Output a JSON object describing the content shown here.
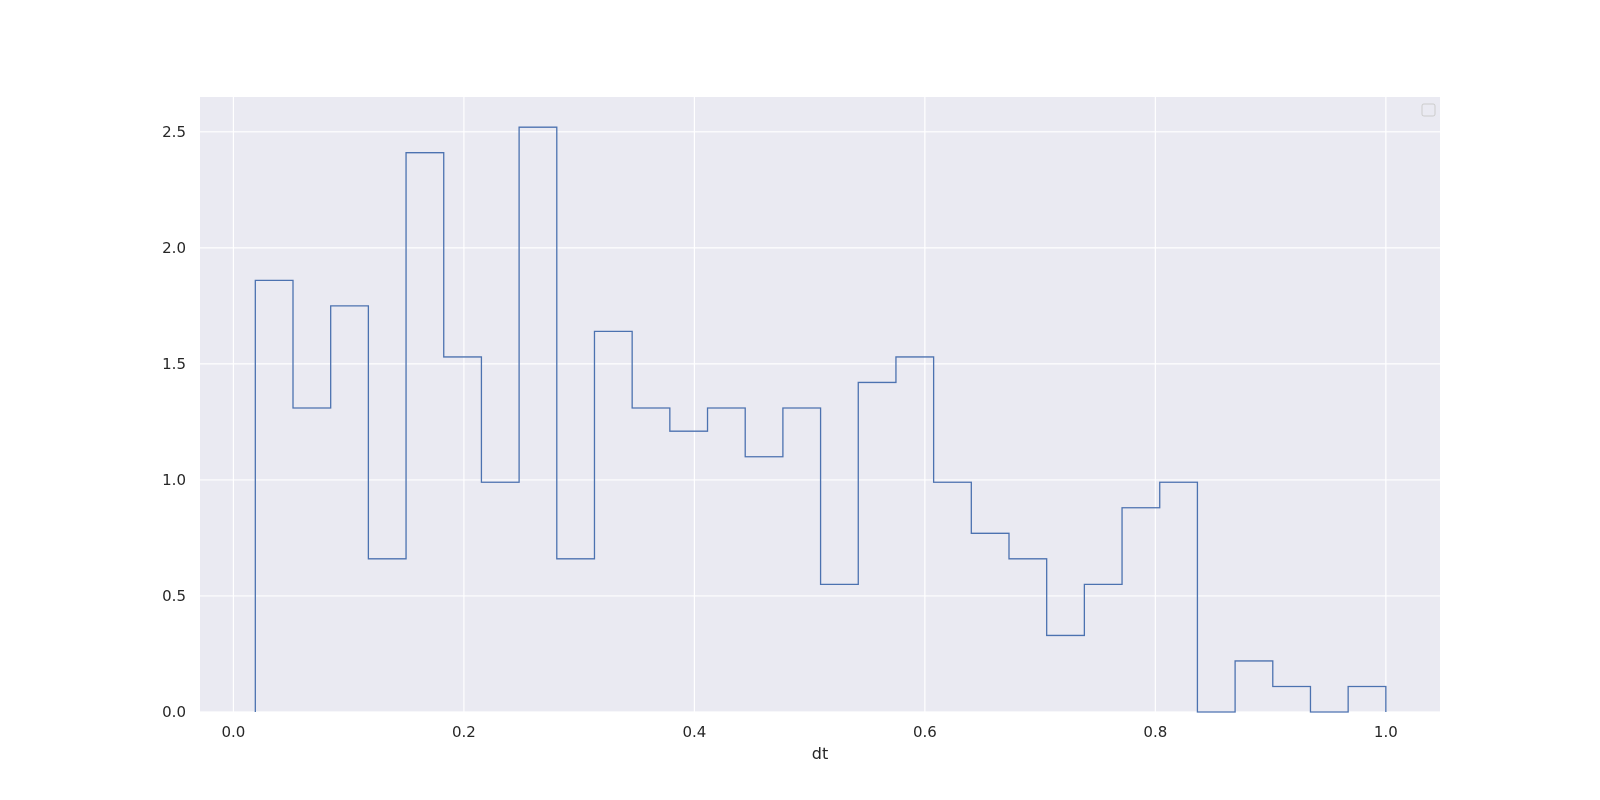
{
  "chart_data": {
    "type": "histogram-step",
    "title": "",
    "xlabel": "dt",
    "ylabel": "",
    "xlim": [
      -0.029,
      1.047
    ],
    "ylim": [
      0,
      2.65
    ],
    "grid": true,
    "legend": {
      "placement": "top-right",
      "entries": []
    },
    "colors": {
      "background": "#eaeaf2",
      "grid": "#ffffff",
      "series": "#4c72b0"
    },
    "x_ticks": [
      {
        "value": 0.0,
        "label": "0.0"
      },
      {
        "value": 0.2,
        "label": "0.2"
      },
      {
        "value": 0.4,
        "label": "0.4"
      },
      {
        "value": 0.6,
        "label": "0.6"
      },
      {
        "value": 0.8,
        "label": "0.8"
      },
      {
        "value": 1.0,
        "label": "1.0"
      }
    ],
    "y_ticks": [
      {
        "value": 0.0,
        "label": "0.0"
      },
      {
        "value": 0.5,
        "label": "0.5"
      },
      {
        "value": 1.0,
        "label": "1.0"
      },
      {
        "value": 1.5,
        "label": "1.5"
      },
      {
        "value": 2.0,
        "label": "2.0"
      },
      {
        "value": 2.5,
        "label": "2.5"
      }
    ],
    "bin_edges": [
      0.019,
      0.0517,
      0.0844,
      0.1171,
      0.1498,
      0.1825,
      0.2152,
      0.2479,
      0.2806,
      0.3133,
      0.346,
      0.3787,
      0.4114,
      0.4441,
      0.4768,
      0.5095,
      0.5422,
      0.5749,
      0.6076,
      0.6403,
      0.673,
      0.7057,
      0.7384,
      0.7711,
      0.8038,
      0.8365,
      0.8692,
      0.9019,
      0.9346,
      0.9673,
      1.0
    ],
    "values": [
      1.86,
      1.31,
      1.75,
      0.66,
      2.41,
      1.53,
      0.99,
      2.52,
      0.66,
      1.64,
      1.31,
      1.21,
      1.31,
      1.1,
      1.31,
      0.55,
      1.42,
      1.53,
      0.99,
      0.77,
      0.66,
      0.33,
      0.55,
      0.88,
      0.99,
      0.0,
      0.22,
      0.11,
      0.0,
      0.11
    ]
  }
}
